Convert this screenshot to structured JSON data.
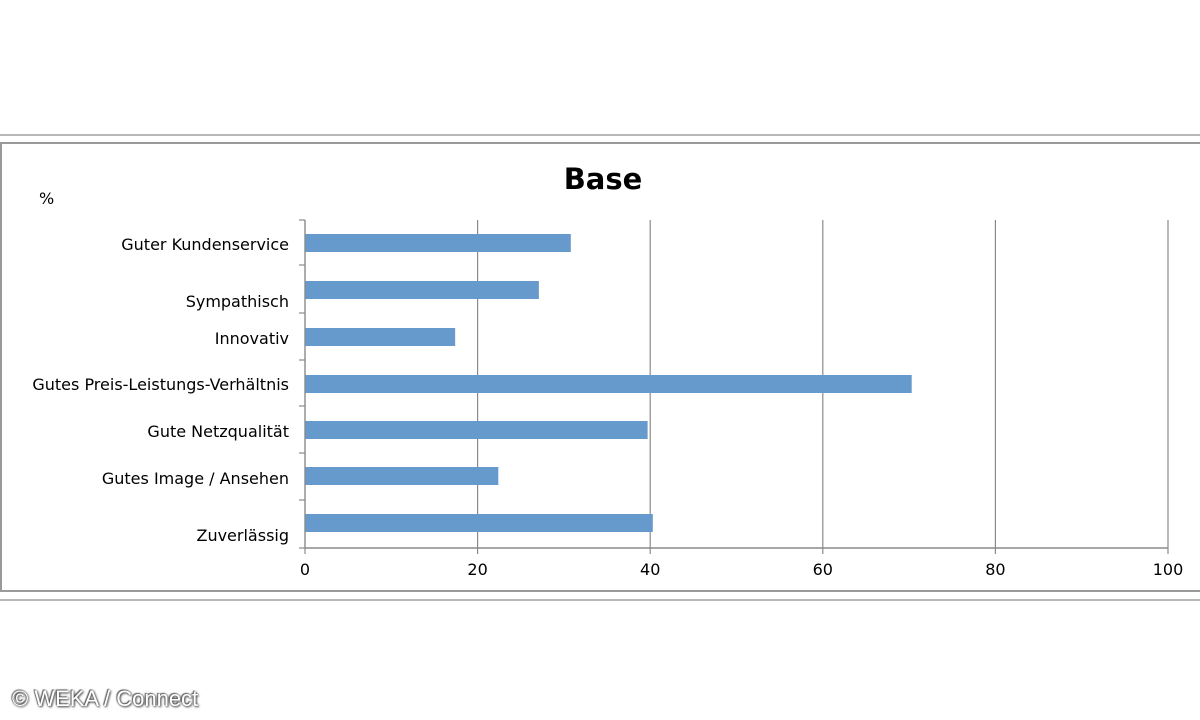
{
  "chart_data": {
    "type": "bar",
    "orientation": "horizontal",
    "title": "Base",
    "ylabel": "%",
    "xlabel": "",
    "categories": [
      "Guter Kundenservice",
      "Sympathisch",
      "Innovativ",
      "Gutes Preis-Leistungs-Verhältnis",
      "Gute Netzqualität",
      "Gutes Image / Ansehen",
      "Zuverlässig"
    ],
    "values": [
      30.8,
      27.1,
      17.4,
      70.3,
      39.7,
      22.4,
      40.3
    ],
    "xlim": [
      0,
      100
    ],
    "xticks": [
      "0",
      "20",
      "40",
      "60",
      "80",
      "100"
    ],
    "grid": true,
    "bar_color": "#6699cc"
  },
  "watermark": "© WEKA / Connect"
}
